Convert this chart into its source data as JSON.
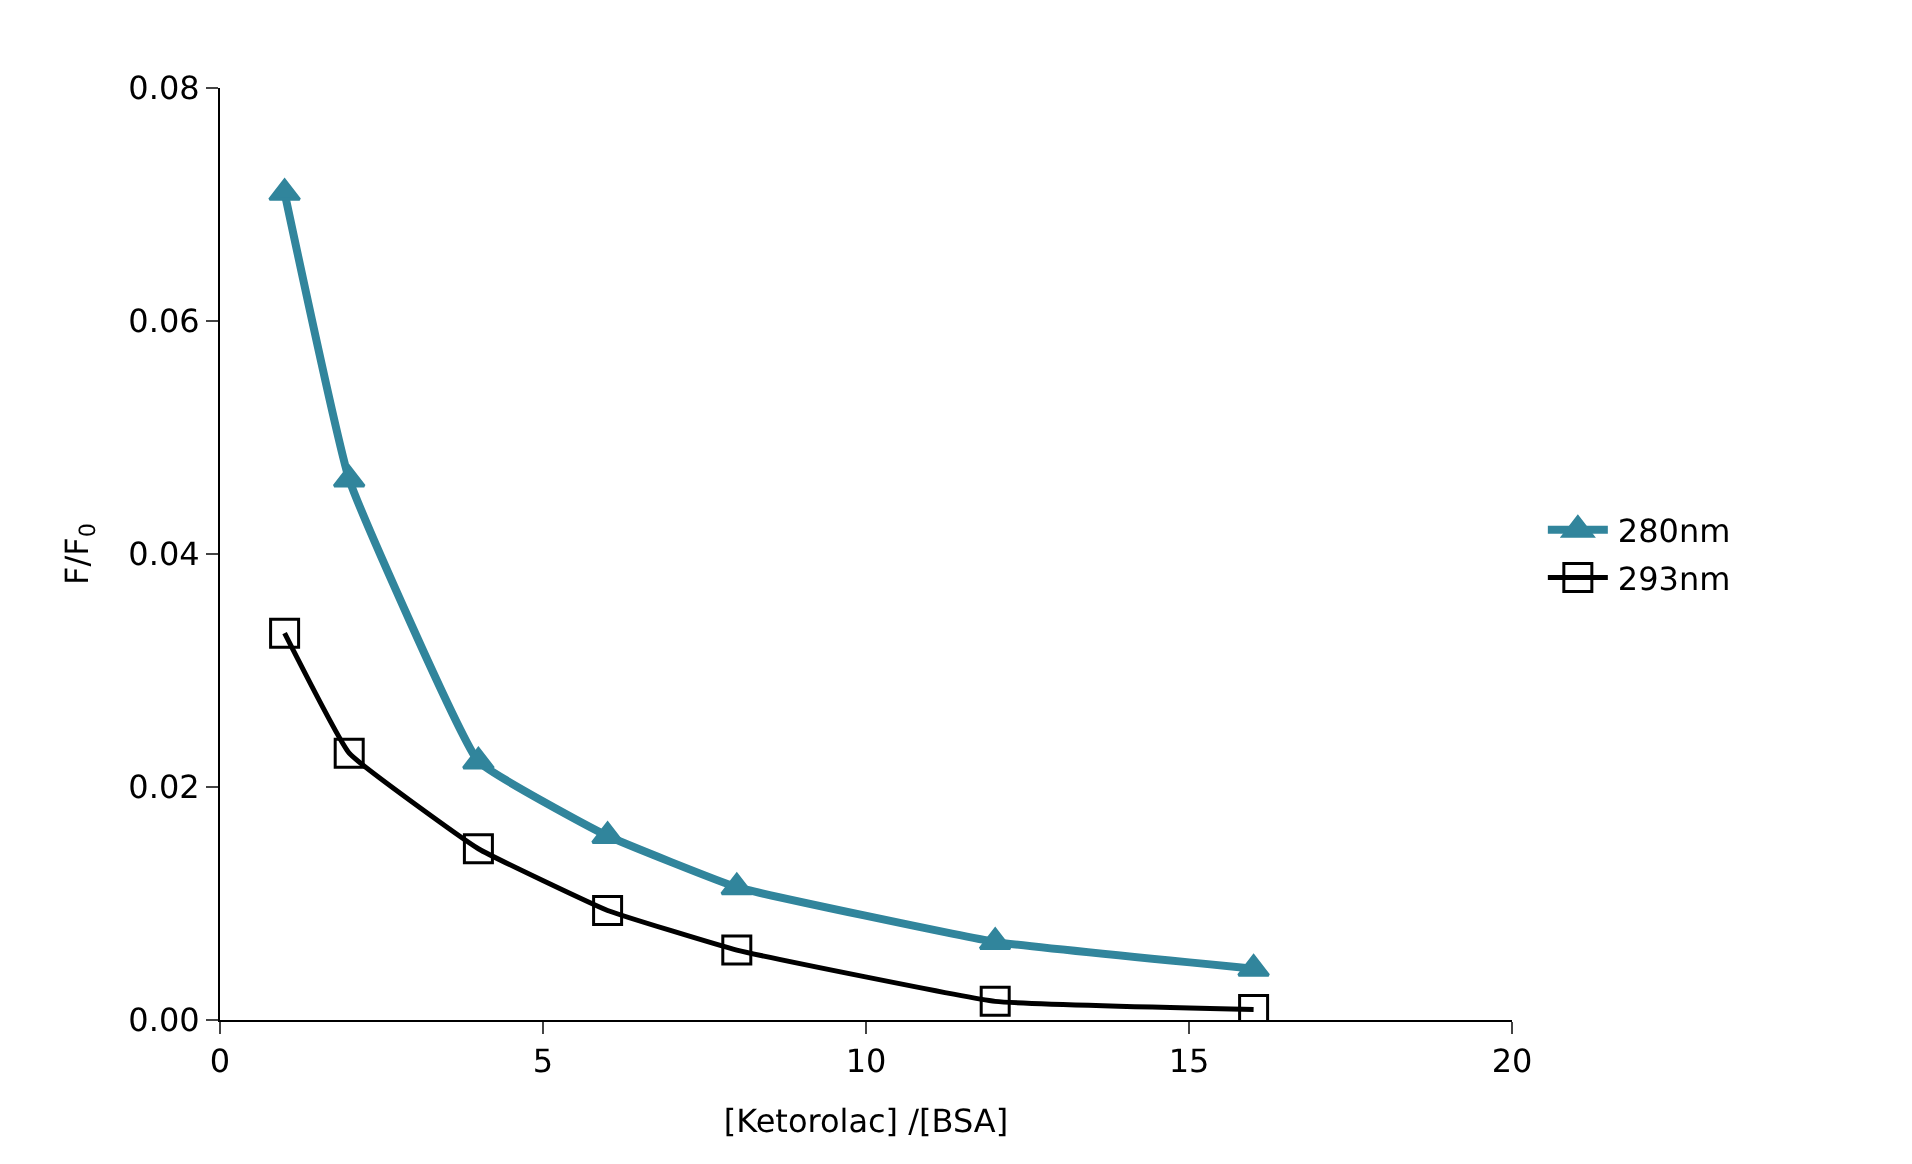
{
  "chart_data": {
    "type": "line",
    "xlabel": "[Ketorolac] /[BSA]",
    "ylabel": "F/F$_{0}$",
    "x": [
      1,
      2,
      4,
      6,
      8,
      12,
      16
    ],
    "series": [
      {
        "name": "280nm",
        "color": "#31859c",
        "marker": "triangle",
        "values": [
          0.071,
          0.0464,
          0.0222,
          0.0158,
          0.0114,
          0.0067,
          0.0044
        ]
      },
      {
        "name": "293nm",
        "color": "#000000",
        "marker": "square",
        "values": [
          0.0332,
          0.0229,
          0.0147,
          0.0094,
          0.006,
          0.0016,
          0.0009
        ]
      }
    ],
    "xlim": [
      0,
      20
    ],
    "xticks": [
      0,
      5,
      10,
      15,
      20
    ],
    "ylim": [
      0,
      0.08
    ],
    "yticks": [
      {
        "value": 0,
        "label": "0.00"
      },
      {
        "value": 0.02,
        "label": "0.02"
      },
      {
        "value": 0.04,
        "label": "0.04"
      },
      {
        "value": 0.06,
        "label": "0.06"
      },
      {
        "value": 0.08,
        "label": "0.08"
      }
    ],
    "legend": "right",
    "line_style": "solid"
  }
}
